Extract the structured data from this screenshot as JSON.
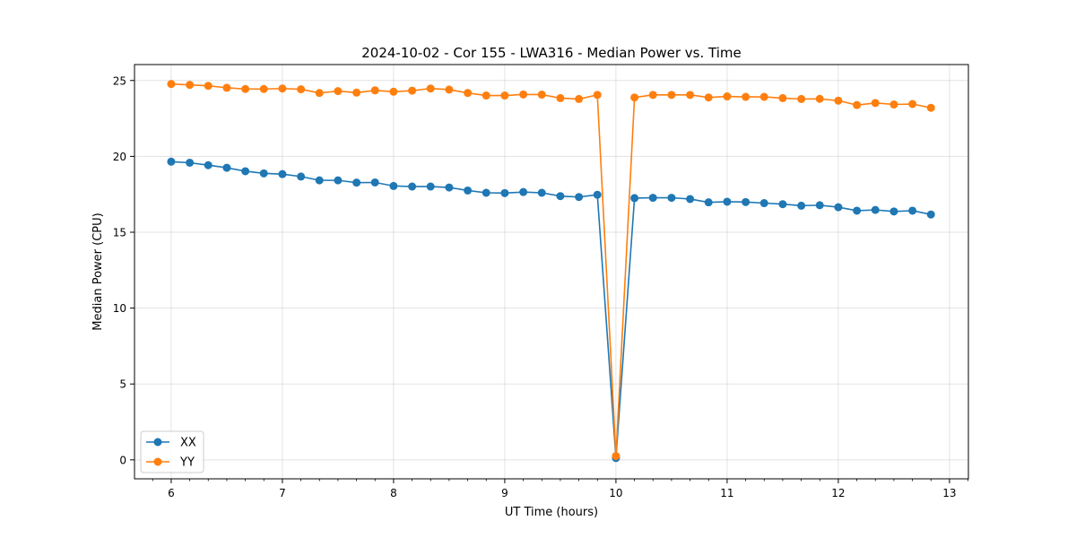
{
  "chart_data": {
    "type": "line",
    "title": "2024-10-02 - Cor 155 - LWA316 - Median Power vs. Time",
    "xlabel": "UT Time (hours)",
    "ylabel": "Median Power (CPU)",
    "xlim": [
      5.67,
      13.17
    ],
    "ylim": [
      -1.25,
      26.05
    ],
    "xticks": [
      6,
      7,
      8,
      9,
      10,
      11,
      12,
      13
    ],
    "yticks": [
      0,
      5,
      10,
      15,
      20,
      25
    ],
    "grid": true,
    "legend_position": "lower-left",
    "x": [
      6.0,
      6.167,
      6.333,
      6.5,
      6.667,
      6.833,
      7.0,
      7.167,
      7.333,
      7.5,
      7.667,
      7.833,
      8.0,
      8.167,
      8.333,
      8.5,
      8.667,
      8.833,
      9.0,
      9.167,
      9.333,
      9.5,
      9.667,
      9.833,
      10.0,
      10.167,
      10.333,
      10.5,
      10.667,
      10.833,
      11.0,
      11.167,
      11.333,
      11.5,
      11.667,
      11.833,
      12.0,
      12.167,
      12.333,
      12.5,
      12.667,
      12.833
    ],
    "series": [
      {
        "name": "XX",
        "color": "#1f77b4",
        "values": [
          19.65,
          19.58,
          19.42,
          19.25,
          19.02,
          18.88,
          18.83,
          18.67,
          18.42,
          18.42,
          18.27,
          18.28,
          18.05,
          18.01,
          18.01,
          17.95,
          17.75,
          17.6,
          17.58,
          17.65,
          17.6,
          17.38,
          17.32,
          17.47,
          0.12,
          17.25,
          17.27,
          17.27,
          17.19,
          16.97,
          17.01,
          16.99,
          16.92,
          16.85,
          16.75,
          16.78,
          16.65,
          16.42,
          16.47,
          16.37,
          16.42,
          16.17
        ]
      },
      {
        "name": "YY",
        "color": "#ff7f0e",
        "values": [
          24.77,
          24.71,
          24.65,
          24.52,
          24.44,
          24.44,
          24.47,
          24.42,
          24.18,
          24.3,
          24.2,
          24.35,
          24.26,
          24.33,
          24.47,
          24.4,
          24.18,
          24.01,
          24.01,
          24.08,
          24.07,
          23.84,
          23.78,
          24.05,
          0.25,
          23.88,
          24.05,
          24.05,
          24.05,
          23.88,
          23.95,
          23.92,
          23.92,
          23.84,
          23.78,
          23.79,
          23.67,
          23.38,
          23.52,
          23.42,
          23.45,
          23.2
        ]
      }
    ]
  }
}
